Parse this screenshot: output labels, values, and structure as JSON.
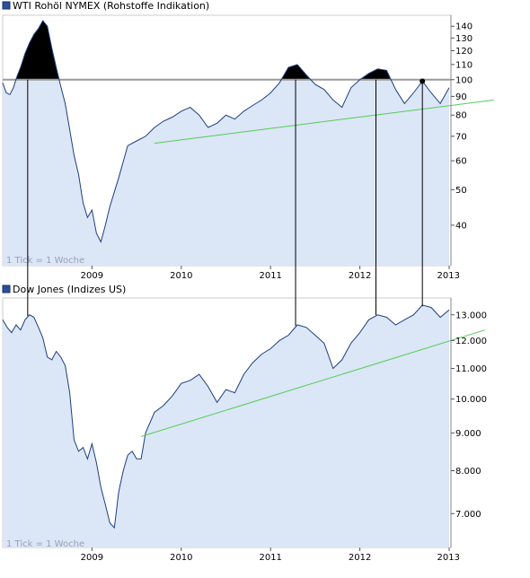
{
  "chart_data": [
    {
      "type": "area",
      "title": "WTI Rohöl NYMEX (Rohstoffe Indikation)",
      "note": "1 Tick = 1 Woche",
      "x_tick_labels": [
        "2009",
        "2010",
        "2011",
        "2012",
        "2013"
      ],
      "y_tick_labels": [
        "140",
        "130",
        "120",
        "110",
        "100",
        "90",
        "80",
        "70",
        "60",
        "50",
        "40"
      ],
      "y_scale": "log",
      "xlim": [
        2008.0,
        2013.02
      ],
      "ylim": [
        31,
        150
      ],
      "reference_line": 100,
      "marked_point": [
        2012.7,
        99
      ],
      "trendline": [
        [
          2009.7,
          67
        ],
        [
          2013.5,
          88
        ]
      ],
      "x": [
        2008.0,
        2008.04,
        2008.08,
        2008.12,
        2008.16,
        2008.2,
        2008.25,
        2008.3,
        2008.35,
        2008.4,
        2008.45,
        2008.5,
        2008.55,
        2008.6,
        2008.65,
        2008.7,
        2008.75,
        2008.8,
        2008.85,
        2008.9,
        2008.95,
        2009.0,
        2009.05,
        2009.1,
        2009.15,
        2009.2,
        2009.3,
        2009.4,
        2009.5,
        2009.6,
        2009.7,
        2009.8,
        2009.9,
        2010.0,
        2010.1,
        2010.2,
        2010.3,
        2010.4,
        2010.5,
        2010.6,
        2010.7,
        2010.8,
        2010.9,
        2011.0,
        2011.1,
        2011.2,
        2011.3,
        2011.4,
        2011.5,
        2011.6,
        2011.7,
        2011.8,
        2011.9,
        2012.0,
        2012.1,
        2012.2,
        2012.3,
        2012.4,
        2012.5,
        2012.6,
        2012.7,
        2012.8,
        2012.9,
        2013.0
      ],
      "values": [
        98,
        92,
        91,
        95,
        102,
        108,
        118,
        126,
        133,
        138,
        145,
        140,
        122,
        108,
        96,
        86,
        73,
        62,
        55,
        46,
        42,
        44,
        38,
        36,
        40,
        45,
        54,
        66,
        68,
        70,
        74,
        77,
        79,
        82,
        84,
        80,
        74,
        76,
        80,
        78,
        82,
        85,
        88,
        92,
        98,
        108,
        110,
        103,
        97,
        94,
        88,
        84,
        95,
        100,
        104,
        107,
        106,
        94,
        86,
        92,
        99,
        92,
        86,
        95
      ]
    },
    {
      "type": "area",
      "title": "Dow Jones (Indizes US)",
      "note": "1 Tick = 1 Woche",
      "x_tick_labels": [
        "2009",
        "2010",
        "2011",
        "2012",
        "2013"
      ],
      "y_tick_labels": [
        "13.000",
        "12.000",
        "11.000",
        "10.000",
        "9.000",
        "8.000",
        "7.000"
      ],
      "y_scale": "log",
      "xlim": [
        2008.0,
        2013.02
      ],
      "ylim": [
        6300,
        13700
      ],
      "trendline": [
        [
          2009.55,
          8900
        ],
        [
          2013.4,
          12400
        ]
      ],
      "x": [
        2008.0,
        2008.05,
        2008.1,
        2008.15,
        2008.2,
        2008.25,
        2008.3,
        2008.35,
        2008.4,
        2008.45,
        2008.5,
        2008.55,
        2008.6,
        2008.65,
        2008.7,
        2008.75,
        2008.8,
        2008.85,
        2008.9,
        2008.95,
        2009.0,
        2009.05,
        2009.1,
        2009.15,
        2009.2,
        2009.25,
        2009.3,
        2009.35,
        2009.4,
        2009.45,
        2009.5,
        2009.55,
        2009.6,
        2009.7,
        2009.8,
        2009.9,
        2010.0,
        2010.1,
        2010.2,
        2010.3,
        2010.4,
        2010.5,
        2010.6,
        2010.7,
        2010.8,
        2010.9,
        2011.0,
        2011.1,
        2011.2,
        2011.3,
        2011.4,
        2011.5,
        2011.6,
        2011.7,
        2011.8,
        2011.9,
        2012.0,
        2012.1,
        2012.2,
        2012.3,
        2012.4,
        2012.5,
        2012.6,
        2012.7,
        2012.8,
        2012.9,
        2013.0
      ],
      "values": [
        12800,
        12500,
        12300,
        12600,
        12400,
        12800,
        13000,
        12900,
        12500,
        12100,
        11400,
        11300,
        11600,
        11400,
        11100,
        10200,
        8800,
        8500,
        8600,
        8300,
        8700,
        8200,
        7600,
        7200,
        6800,
        6700,
        7500,
        8000,
        8400,
        8500,
        8300,
        8300,
        9000,
        9600,
        9800,
        10100,
        10500,
        10600,
        10800,
        10400,
        9900,
        10300,
        10200,
        10800,
        11200,
        11500,
        11700,
        12000,
        12200,
        12600,
        12500,
        12200,
        11900,
        11000,
        11300,
        11900,
        12300,
        12800,
        13000,
        12900,
        12600,
        12800,
        13000,
        13400,
        13300,
        12900,
        13200
      ]
    }
  ]
}
